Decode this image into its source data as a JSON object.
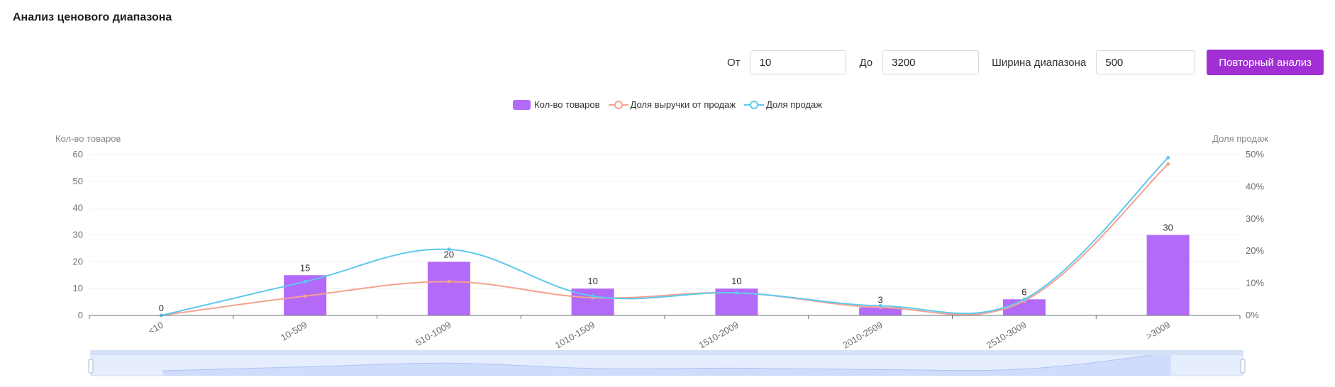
{
  "page": {
    "title": "Анализ ценового диапазона"
  },
  "controls": {
    "from_label": "От",
    "from_value": "10",
    "to_label": "До",
    "to_value": "3200",
    "width_label": "Ширина диапазона",
    "width_value": "500",
    "reanalyze_label": "Повторный анализ"
  },
  "colors": {
    "bar": "#b36af8",
    "revenue_line": "#f5a291",
    "sales_line": "#5ec8ee",
    "button": "#a12fd3"
  },
  "chart_data": {
    "type": "bar",
    "categories": [
      "<10",
      "10-509",
      "510-1009",
      "1010-1509",
      "1510-2009",
      "2010-2509",
      "2510-3009",
      ">3009"
    ],
    "left_axis": {
      "label": "Кол-во товаров",
      "ylim": [
        0,
        60
      ],
      "ticks": [
        "0",
        "10",
        "20",
        "30",
        "40",
        "50",
        "60"
      ]
    },
    "right_axis": {
      "label": "Доля продаж",
      "ylim": [
        0,
        50
      ],
      "ticks": [
        "0%",
        "10%",
        "20%",
        "30%",
        "40%",
        "50%"
      ]
    },
    "legend": [
      "Кол-во товаров",
      "Доля выручки от продаж",
      "Доля продаж"
    ],
    "legend_position": "top-center",
    "series": [
      {
        "name": "Кол-во товаров",
        "type": "bar",
        "axis": "left",
        "values": [
          0,
          15,
          20,
          10,
          10,
          3,
          6,
          30
        ],
        "labels": [
          "0",
          "15",
          "20",
          "10",
          "10",
          "3",
          "6",
          "30"
        ]
      },
      {
        "name": "Доля выручки от продаж",
        "type": "line",
        "axis": "right",
        "values": [
          0,
          6,
          10.5,
          5.5,
          7,
          2.5,
          4.5,
          47
        ]
      },
      {
        "name": "Доля продаж",
        "type": "line",
        "axis": "right",
        "values": [
          0,
          10.5,
          20.5,
          6,
          7,
          3,
          5,
          49
        ]
      }
    ],
    "grid": true,
    "data_zoom": true
  }
}
